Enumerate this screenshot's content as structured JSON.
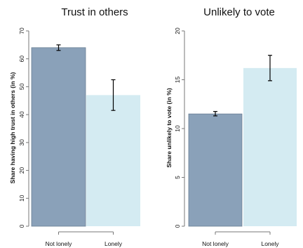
{
  "chart_data": [
    {
      "type": "bar",
      "title": "Trust in others",
      "ylabel": "Share having high trust in others (in %)",
      "xlabel": "",
      "categories": [
        "Not lonely",
        "Lonely"
      ],
      "values": [
        64,
        47
      ],
      "error_bars": [
        [
          63,
          65
        ],
        [
          41.5,
          52.5
        ]
      ],
      "colors": [
        "#8aa1b9",
        "#d4ebf2"
      ],
      "ylim": [
        0,
        70
      ],
      "yticks": [
        0,
        10,
        20,
        30,
        40,
        50,
        60,
        70
      ],
      "grid": false
    },
    {
      "type": "bar",
      "title": "Unlikely to vote",
      "ylabel": "Share unlikely to vote (in %)",
      "xlabel": "",
      "categories": [
        "Not lonely",
        "Lonely"
      ],
      "values": [
        11.5,
        16.2
      ],
      "error_bars": [
        [
          11.3,
          11.75
        ],
        [
          14.9,
          17.5
        ]
      ],
      "colors": [
        "#8aa1b9",
        "#d4ebf2"
      ],
      "ylim": [
        0,
        20
      ],
      "yticks": [
        0,
        5,
        10,
        15,
        20
      ],
      "grid": false
    }
  ]
}
